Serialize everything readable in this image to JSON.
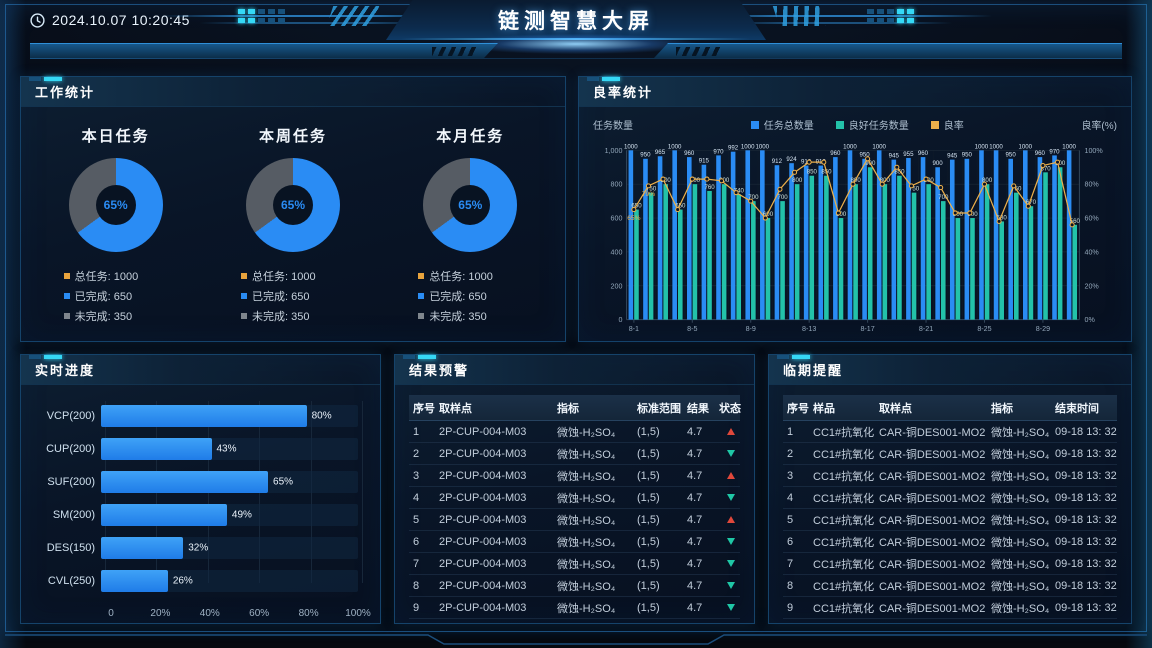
{
  "header": {
    "time": "2024.10.07 10:20:45",
    "title": "链测智慧大屏"
  },
  "colors": {
    "accent_blue": "#2A8CF4",
    "teal": "#23C2A9",
    "orange": "#EDB04B",
    "gray_ring": "#565C64",
    "alert_red": "#E0483B",
    "ok_green": "#1FC7A6"
  },
  "work": {
    "title": "工作统计",
    "ring_colors": {
      "done": "#2A8CF4",
      "todo": "#565C64"
    },
    "cards": [
      {
        "name": "本日任务",
        "percent": 65,
        "center_label": "65%",
        "legend": [
          {
            "text": "总任务: 1000",
            "color": "#E8A33D"
          },
          {
            "text": "已完成: 650",
            "color": "#2A8CF4"
          },
          {
            "text": "未完成: 350",
            "color": "#7F868D"
          }
        ]
      },
      {
        "name": "本周任务",
        "percent": 65,
        "center_label": "65%",
        "legend": [
          {
            "text": "总任务: 1000",
            "color": "#E8A33D"
          },
          {
            "text": "已完成: 650",
            "color": "#2A8CF4"
          },
          {
            "text": "未完成: 350",
            "color": "#7F868D"
          }
        ]
      },
      {
        "name": "本月任务",
        "percent": 65,
        "center_label": "65%",
        "legend": [
          {
            "text": "总任务: 1000",
            "color": "#E8A33D"
          },
          {
            "text": "已完成: 650",
            "color": "#2A8CF4"
          },
          {
            "text": "未完成: 350",
            "color": "#7F868D"
          }
        ]
      }
    ]
  },
  "yield": {
    "title": "良率统计",
    "axis_left": "任务数量",
    "axis_right": "良率(%)",
    "legend": [
      {
        "label": "任务总数量",
        "color": "#2A8CF4"
      },
      {
        "label": "良好任务数量",
        "color": "#23C2A9"
      },
      {
        "label": "良率",
        "color": "#EDB04B"
      }
    ]
  },
  "progress": {
    "title": "实时进度"
  },
  "alert": {
    "title": "结果预警",
    "columns": [
      "序号",
      "取样点",
      "指标",
      "标准范围",
      "结果",
      "状态"
    ],
    "rows": [
      [
        "1",
        "2P-CUP-004-M03",
        "微蚀-H₂SO₄",
        "(1,5)",
        "4.7",
        "up"
      ],
      [
        "2",
        "2P-CUP-004-M03",
        "微蚀-H₂SO₄",
        "(1,5)",
        "4.7",
        "down"
      ],
      [
        "3",
        "2P-CUP-004-M03",
        "微蚀-H₂SO₄",
        "(1,5)",
        "4.7",
        "up"
      ],
      [
        "4",
        "2P-CUP-004-M03",
        "微蚀-H₂SO₄",
        "(1,5)",
        "4.7",
        "down"
      ],
      [
        "5",
        "2P-CUP-004-M03",
        "微蚀-H₂SO₄",
        "(1,5)",
        "4.7",
        "up"
      ],
      [
        "6",
        "2P-CUP-004-M03",
        "微蚀-H₂SO₄",
        "(1,5)",
        "4.7",
        "down"
      ],
      [
        "7",
        "2P-CUP-004-M03",
        "微蚀-H₂SO₄",
        "(1,5)",
        "4.7",
        "down"
      ],
      [
        "8",
        "2P-CUP-004-M03",
        "微蚀-H₂SO₄",
        "(1,5)",
        "4.7",
        "down"
      ],
      [
        "9",
        "2P-CUP-004-M03",
        "微蚀-H₂SO₄",
        "(1,5)",
        "4.7",
        "down"
      ]
    ]
  },
  "expiry": {
    "title": "临期提醒",
    "columns": [
      "序号",
      "样品",
      "取样点",
      "指标",
      "结束时间"
    ],
    "rows": [
      [
        "1",
        "CC1#抗氧化",
        "CAR-铜DES001-MO2",
        "微蚀-H₂SO₄",
        "09-18 13: 32"
      ],
      [
        "2",
        "CC1#抗氧化",
        "CAR-铜DES001-MO2",
        "微蚀-H₂SO₄",
        "09-18 13: 32"
      ],
      [
        "3",
        "CC1#抗氧化",
        "CAR-铜DES001-MO2",
        "微蚀-H₂SO₄",
        "09-18 13: 32"
      ],
      [
        "4",
        "CC1#抗氧化",
        "CAR-铜DES001-MO2",
        "微蚀-H₂SO₄",
        "09-18 13: 32"
      ],
      [
        "5",
        "CC1#抗氧化",
        "CAR-铜DES001-MO2",
        "微蚀-H₂SO₄",
        "09-18 13: 32"
      ],
      [
        "6",
        "CC1#抗氧化",
        "CAR-铜DES001-MO2",
        "微蚀-H₂SO₄",
        "09-18 13: 32"
      ],
      [
        "7",
        "CC1#抗氧化",
        "CAR-铜DES001-MO2",
        "微蚀-H₂SO₄",
        "09-18 13: 32"
      ],
      [
        "8",
        "CC1#抗氧化",
        "CAR-铜DES001-MO2",
        "微蚀-H₂SO₄",
        "09-18 13: 32"
      ],
      [
        "9",
        "CC1#抗氧化",
        "CAR-铜DES001-MO2",
        "微蚀-H₂SO₄",
        "09-18 13: 32"
      ]
    ]
  },
  "chart_data": [
    {
      "id": "work-donut-today",
      "type": "pie",
      "title": "本日任务",
      "slices": [
        {
          "name": "已完成",
          "value": 650
        },
        {
          "name": "未完成",
          "value": 350
        }
      ],
      "total": 1000,
      "percent_done": 65
    },
    {
      "id": "work-donut-week",
      "type": "pie",
      "title": "本周任务",
      "slices": [
        {
          "name": "已完成",
          "value": 650
        },
        {
          "name": "未完成",
          "value": 350
        }
      ],
      "total": 1000,
      "percent_done": 65
    },
    {
      "id": "work-donut-month",
      "type": "pie",
      "title": "本月任务",
      "slices": [
        {
          "name": "已完成",
          "value": 650
        },
        {
          "name": "未完成",
          "value": 350
        }
      ],
      "total": 1000,
      "percent_done": 65
    },
    {
      "id": "yield",
      "type": "bar",
      "title": "良率统计",
      "x": [
        "8-1",
        "8-2",
        "8-3",
        "8-4",
        "8-5",
        "8-6",
        "8-7",
        "8-8",
        "8-9",
        "8-10",
        "8-11",
        "8-12",
        "8-13",
        "8-14",
        "8-15",
        "8-16",
        "8-17",
        "8-18",
        "8-19",
        "8-20",
        "8-21",
        "8-22",
        "8-23",
        "8-24",
        "8-25",
        "8-26",
        "8-27",
        "8-28",
        "8-29",
        "8-30",
        "8-31"
      ],
      "series": [
        {
          "name": "任务总数量",
          "type": "bar",
          "color": "#2A8CF4",
          "values": [
            1000,
            950,
            965,
            1000,
            960,
            915,
            970,
            992,
            1000,
            1000,
            912,
            924,
            910,
            910,
            960,
            1000,
            950,
            1000,
            945,
            955,
            960,
            900,
            945,
            950,
            1000,
            1000,
            950,
            1000,
            960,
            970,
            1000
          ]
        },
        {
          "name": "良好任务数量",
          "type": "bar",
          "color": "#23C2A9",
          "values": [
            650,
            750,
            800,
            650,
            800,
            760,
            800,
            740,
            700,
            600,
            700,
            800,
            850,
            850,
            600,
            800,
            900,
            800,
            850,
            750,
            800,
            700,
            600,
            600,
            800,
            580,
            750,
            670,
            870,
            900,
            560
          ]
        },
        {
          "name": "良率",
          "type": "line",
          "color": "#EDB04B",
          "unit": "%",
          "values": [
            65,
            79,
            83,
            65,
            83,
            83,
            82,
            75,
            70,
            60,
            77,
            87,
            93,
            93,
            63,
            80,
            95,
            80,
            90,
            79,
            83,
            78,
            63,
            63,
            80,
            58,
            79,
            67,
            91,
            93,
            56
          ]
        }
      ],
      "ylim_left": [
        0,
        1000
      ],
      "ylim_right": [
        0,
        100
      ],
      "yticks_left": [
        "0",
        "200",
        "400",
        "600",
        "800",
        "1,000"
      ],
      "yticks_right": [
        "0%",
        "20%",
        "40%",
        "60%",
        "80%",
        "100%"
      ],
      "xticks_shown": [
        "8-1",
        "8-5",
        "8-9",
        "8-13",
        "8-17",
        "8-21",
        "8-25",
        "8-29"
      ],
      "pct_label_indices": [
        0,
        1
      ],
      "legend_position": "top",
      "grid": true
    },
    {
      "id": "progress",
      "type": "bar",
      "orientation": "horizontal",
      "title": "实时进度",
      "categories": [
        "VCP(200)",
        "CUP(200)",
        "SUF(200)",
        "SM(200)",
        "DES(150)",
        "CVL(250)"
      ],
      "values": [
        80,
        43,
        65,
        49,
        32,
        26
      ],
      "value_suffix": "%",
      "xticks": [
        "0",
        "20%",
        "40%",
        "60%",
        "80%",
        "100%"
      ],
      "xlim": [
        0,
        100
      ]
    }
  ]
}
